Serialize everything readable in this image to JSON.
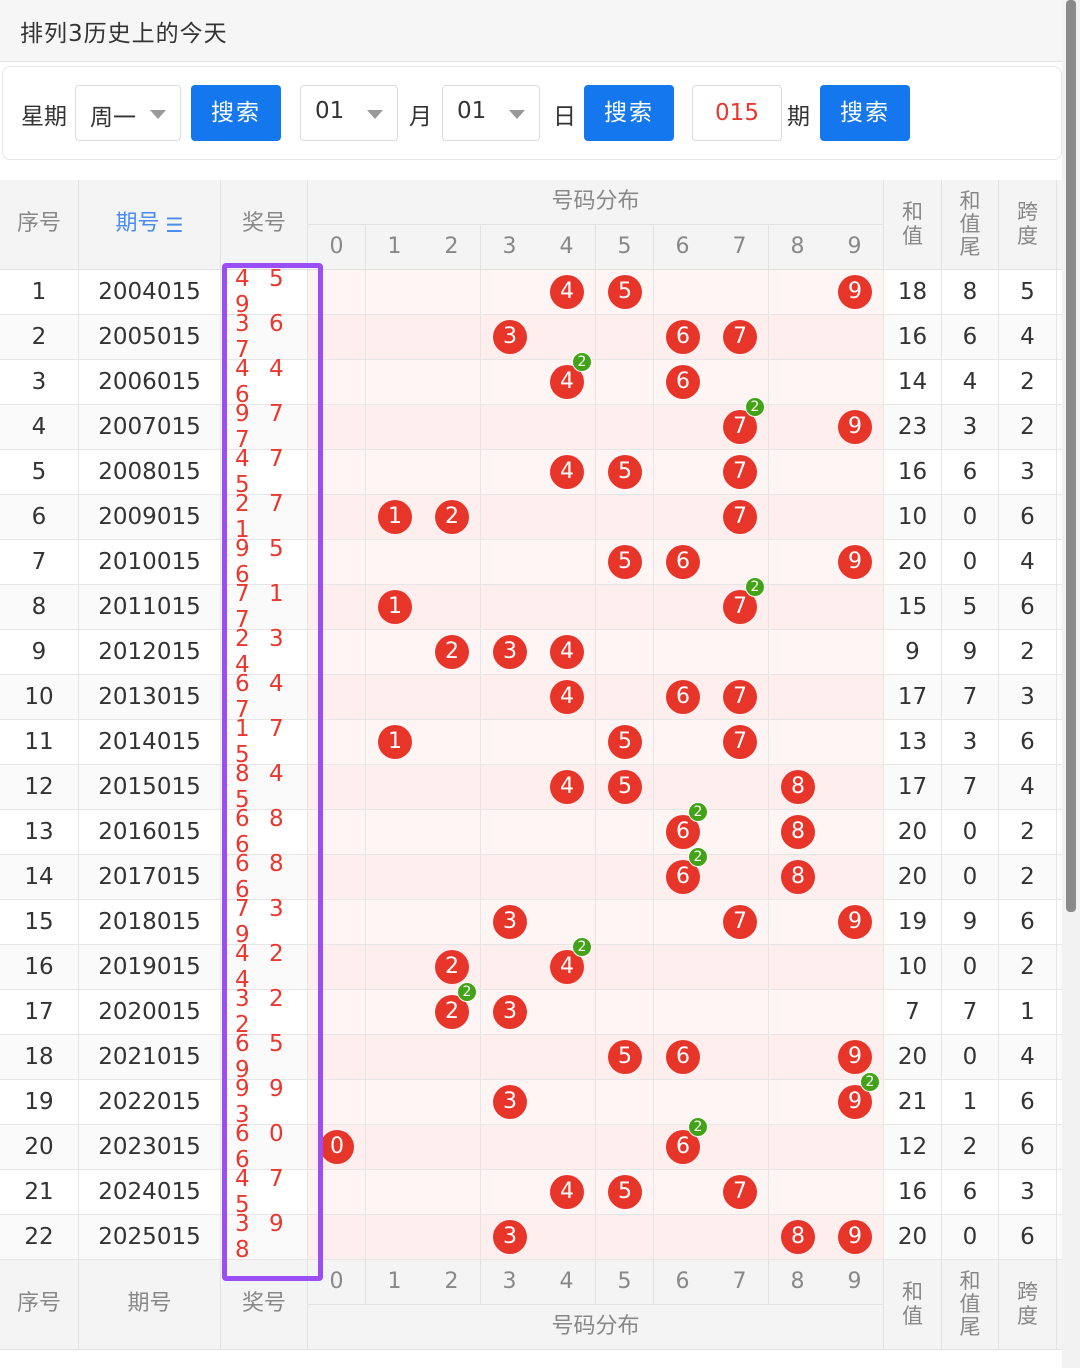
{
  "header": {
    "title": "排列3历史上的今天"
  },
  "search": {
    "weekday_label": "星期",
    "weekday_value": "周一",
    "search_label": "搜索",
    "month_value": "01",
    "month_label": "月",
    "day_value": "01",
    "day_label": "日",
    "period_value": "015",
    "period_label": "期"
  },
  "table": {
    "headers": {
      "index": "序号",
      "period": "期号",
      "draw": "奖号",
      "distribution": "号码分布",
      "sum": "和值",
      "sum_tail": "和值尾",
      "span": "跨度",
      "digits": [
        "0",
        "1",
        "2",
        "3",
        "4",
        "5",
        "6",
        "7",
        "8",
        "9"
      ]
    },
    "rows": [
      {
        "idx": "1",
        "period": "2004015",
        "draw": "459",
        "sum": "18",
        "tail": "8",
        "span": "5"
      },
      {
        "idx": "2",
        "period": "2005015",
        "draw": "367",
        "sum": "16",
        "tail": "6",
        "span": "4"
      },
      {
        "idx": "3",
        "period": "2006015",
        "draw": "446",
        "sum": "14",
        "tail": "4",
        "span": "2"
      },
      {
        "idx": "4",
        "period": "2007015",
        "draw": "977",
        "sum": "23",
        "tail": "3",
        "span": "2"
      },
      {
        "idx": "5",
        "period": "2008015",
        "draw": "475",
        "sum": "16",
        "tail": "6",
        "span": "3"
      },
      {
        "idx": "6",
        "period": "2009015",
        "draw": "271",
        "sum": "10",
        "tail": "0",
        "span": "6"
      },
      {
        "idx": "7",
        "period": "2010015",
        "draw": "956",
        "sum": "20",
        "tail": "0",
        "span": "4"
      },
      {
        "idx": "8",
        "period": "2011015",
        "draw": "717",
        "sum": "15",
        "tail": "5",
        "span": "6"
      },
      {
        "idx": "9",
        "period": "2012015",
        "draw": "234",
        "sum": "9",
        "tail": "9",
        "span": "2"
      },
      {
        "idx": "10",
        "period": "2013015",
        "draw": "647",
        "sum": "17",
        "tail": "7",
        "span": "3"
      },
      {
        "idx": "11",
        "period": "2014015",
        "draw": "175",
        "sum": "13",
        "tail": "3",
        "span": "6"
      },
      {
        "idx": "12",
        "period": "2015015",
        "draw": "845",
        "sum": "17",
        "tail": "7",
        "span": "4"
      },
      {
        "idx": "13",
        "period": "2016015",
        "draw": "686",
        "sum": "20",
        "tail": "0",
        "span": "2"
      },
      {
        "idx": "14",
        "period": "2017015",
        "draw": "686",
        "sum": "20",
        "tail": "0",
        "span": "2"
      },
      {
        "idx": "15",
        "period": "2018015",
        "draw": "739",
        "sum": "19",
        "tail": "9",
        "span": "6"
      },
      {
        "idx": "16",
        "period": "2019015",
        "draw": "424",
        "sum": "10",
        "tail": "0",
        "span": "2"
      },
      {
        "idx": "17",
        "period": "2020015",
        "draw": "322",
        "sum": "7",
        "tail": "7",
        "span": "1"
      },
      {
        "idx": "18",
        "period": "2021015",
        "draw": "659",
        "sum": "20",
        "tail": "0",
        "span": "4"
      },
      {
        "idx": "19",
        "period": "2022015",
        "draw": "993",
        "sum": "21",
        "tail": "1",
        "span": "6"
      },
      {
        "idx": "20",
        "period": "2023015",
        "draw": "606",
        "sum": "12",
        "tail": "2",
        "span": "6"
      },
      {
        "idx": "21",
        "period": "2024015",
        "draw": "475",
        "sum": "16",
        "tail": "6",
        "span": "3"
      },
      {
        "idx": "22",
        "period": "2025015",
        "draw": "398",
        "sum": "20",
        "tail": "0",
        "span": "6"
      }
    ]
  },
  "colors": {
    "ball": "#e8352a",
    "badge": "#43a317",
    "button": "#1477ee",
    "highlight": "#9a4ef5",
    "draw_text": "#e8382f"
  }
}
